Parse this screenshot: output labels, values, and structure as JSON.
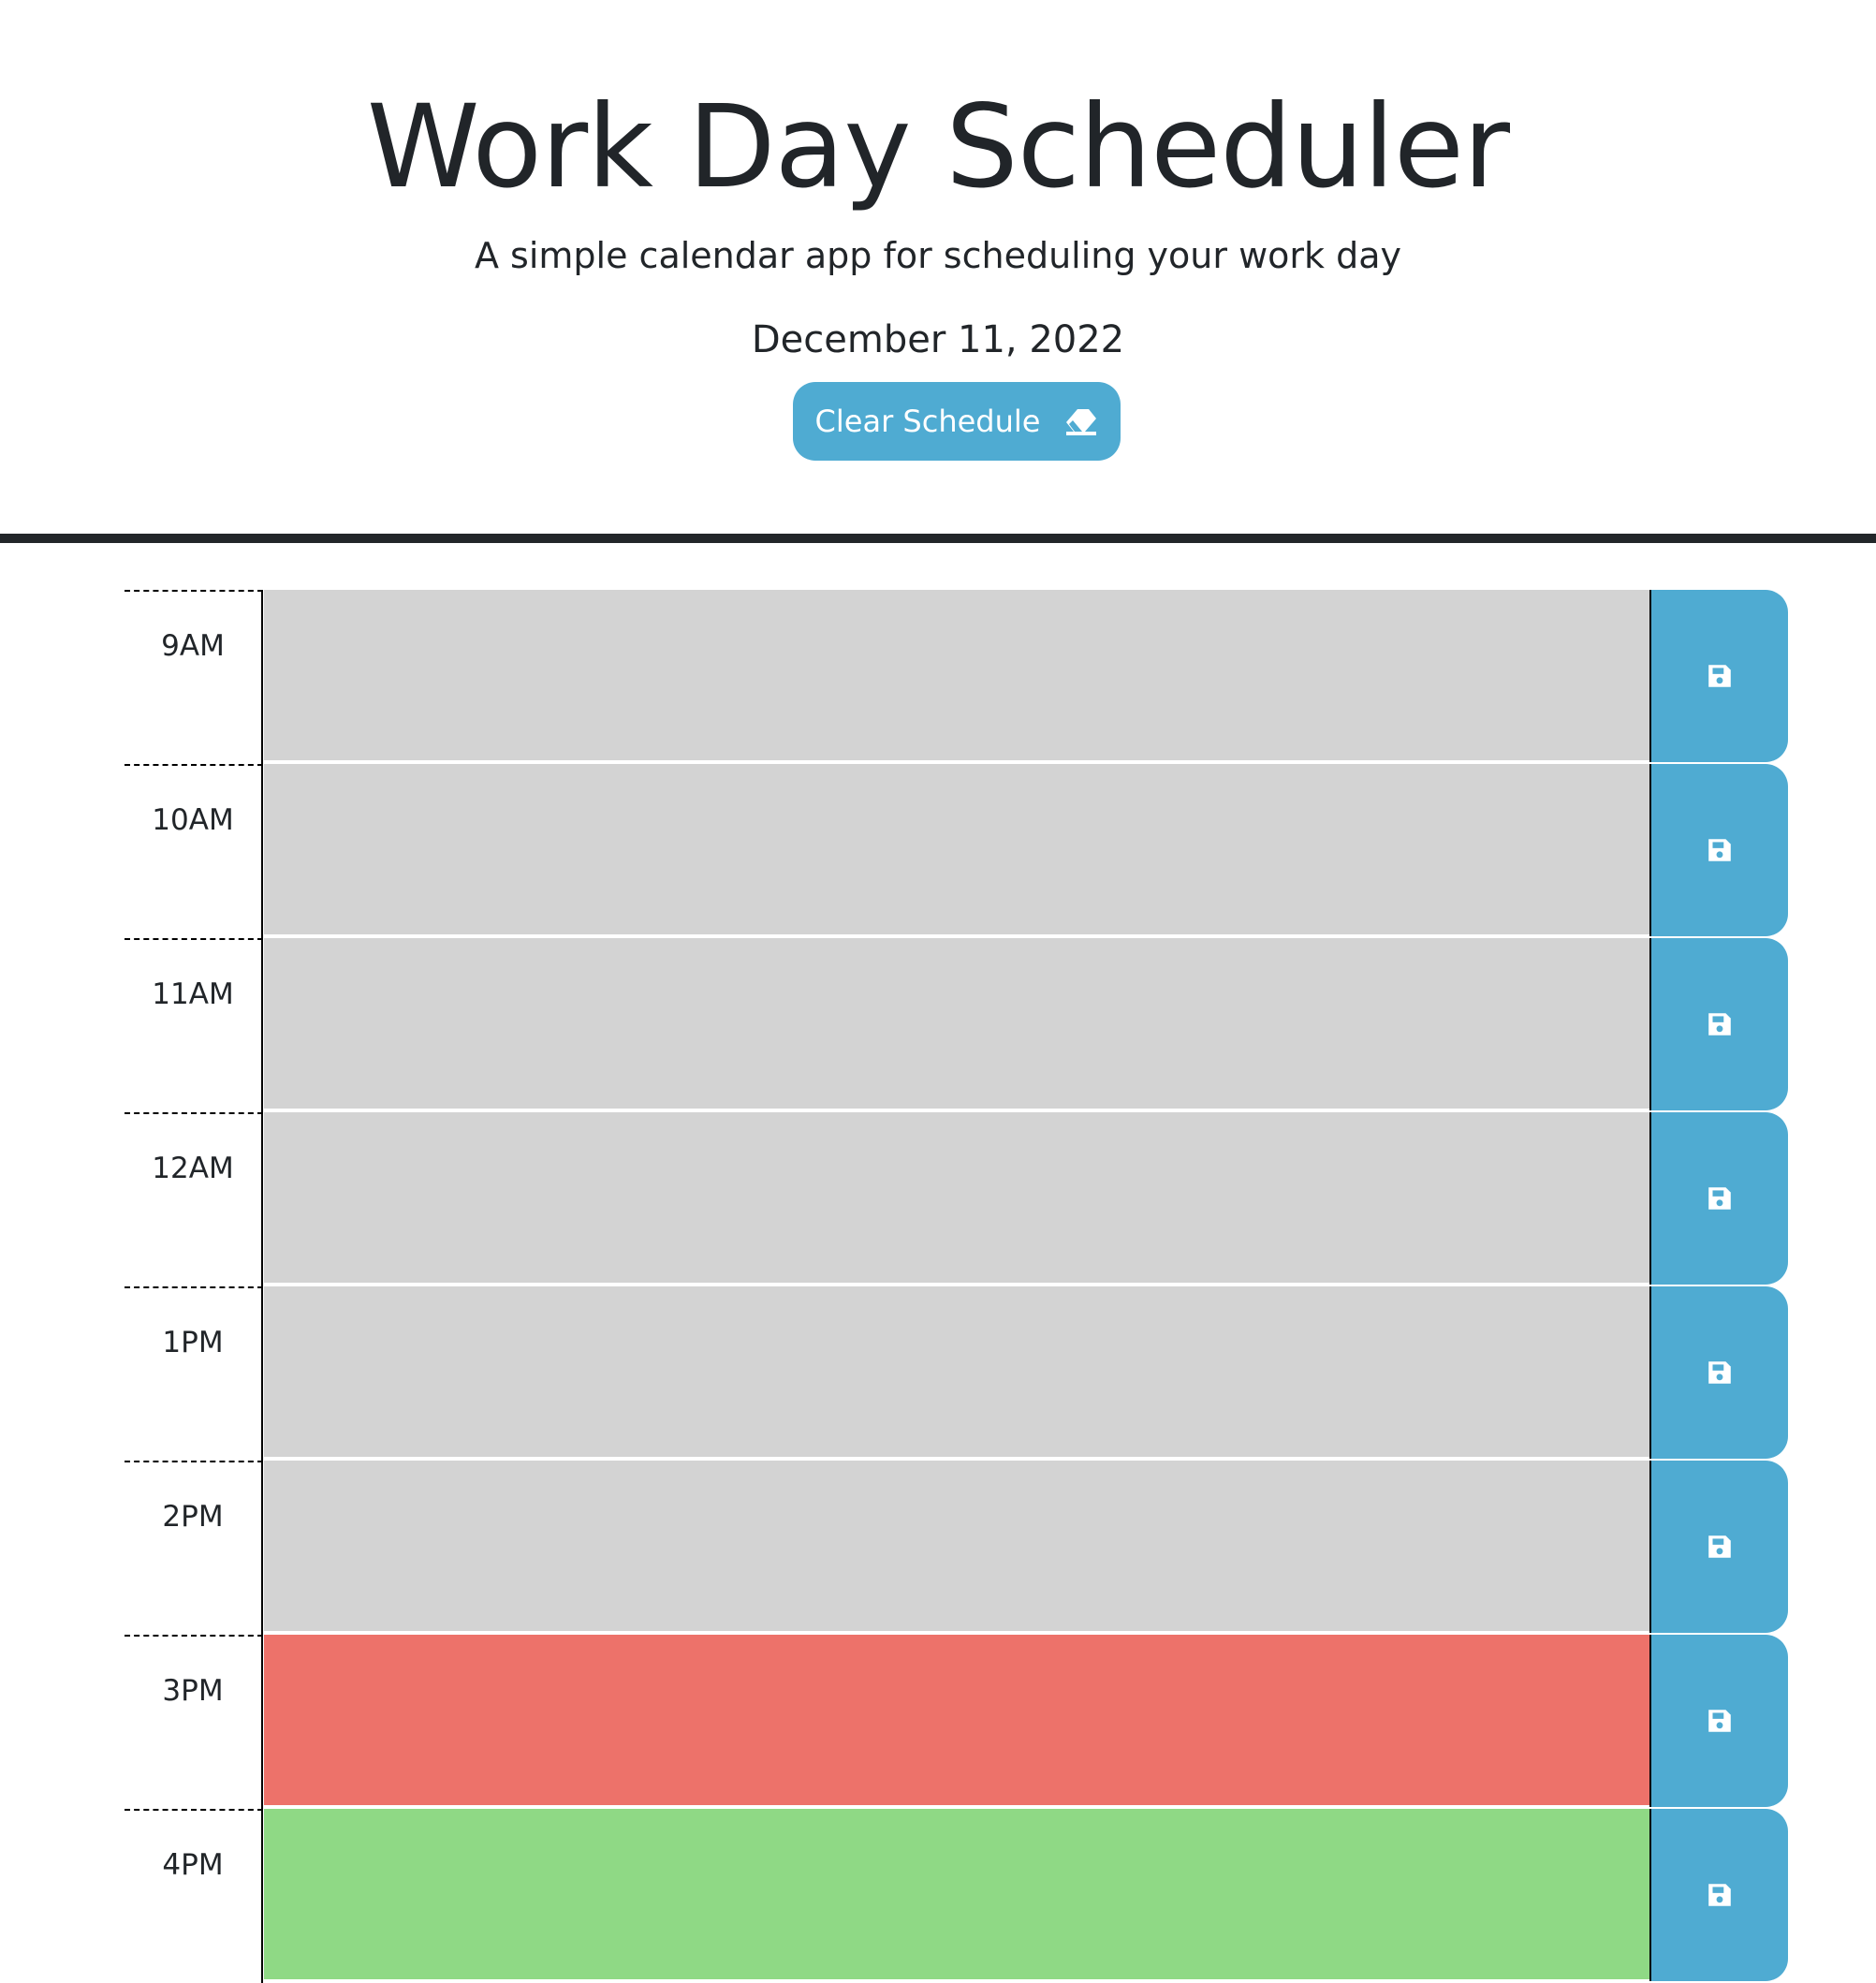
{
  "header": {
    "title": "Work Day Scheduler",
    "subtitle": "A simple calendar app for scheduling your work day",
    "date": "December 11, 2022",
    "clear_label": "Clear Schedule",
    "clear_icon": "eraser-icon"
  },
  "colors": {
    "past": "#d3d3d3",
    "present": "#ed726a",
    "future": "#8fd985",
    "button": "#4fabd2",
    "divider": "#222629"
  },
  "save_icon": "floppy-disk-icon",
  "hours": [
    {
      "label": "9AM",
      "status": "past",
      "text": ""
    },
    {
      "label": "10AM",
      "status": "past",
      "text": ""
    },
    {
      "label": "11AM",
      "status": "past",
      "text": ""
    },
    {
      "label": "12AM",
      "status": "past",
      "text": ""
    },
    {
      "label": "1PM",
      "status": "past",
      "text": ""
    },
    {
      "label": "2PM",
      "status": "past",
      "text": ""
    },
    {
      "label": "3PM",
      "status": "present",
      "text": ""
    },
    {
      "label": "4PM",
      "status": "future",
      "text": ""
    }
  ]
}
